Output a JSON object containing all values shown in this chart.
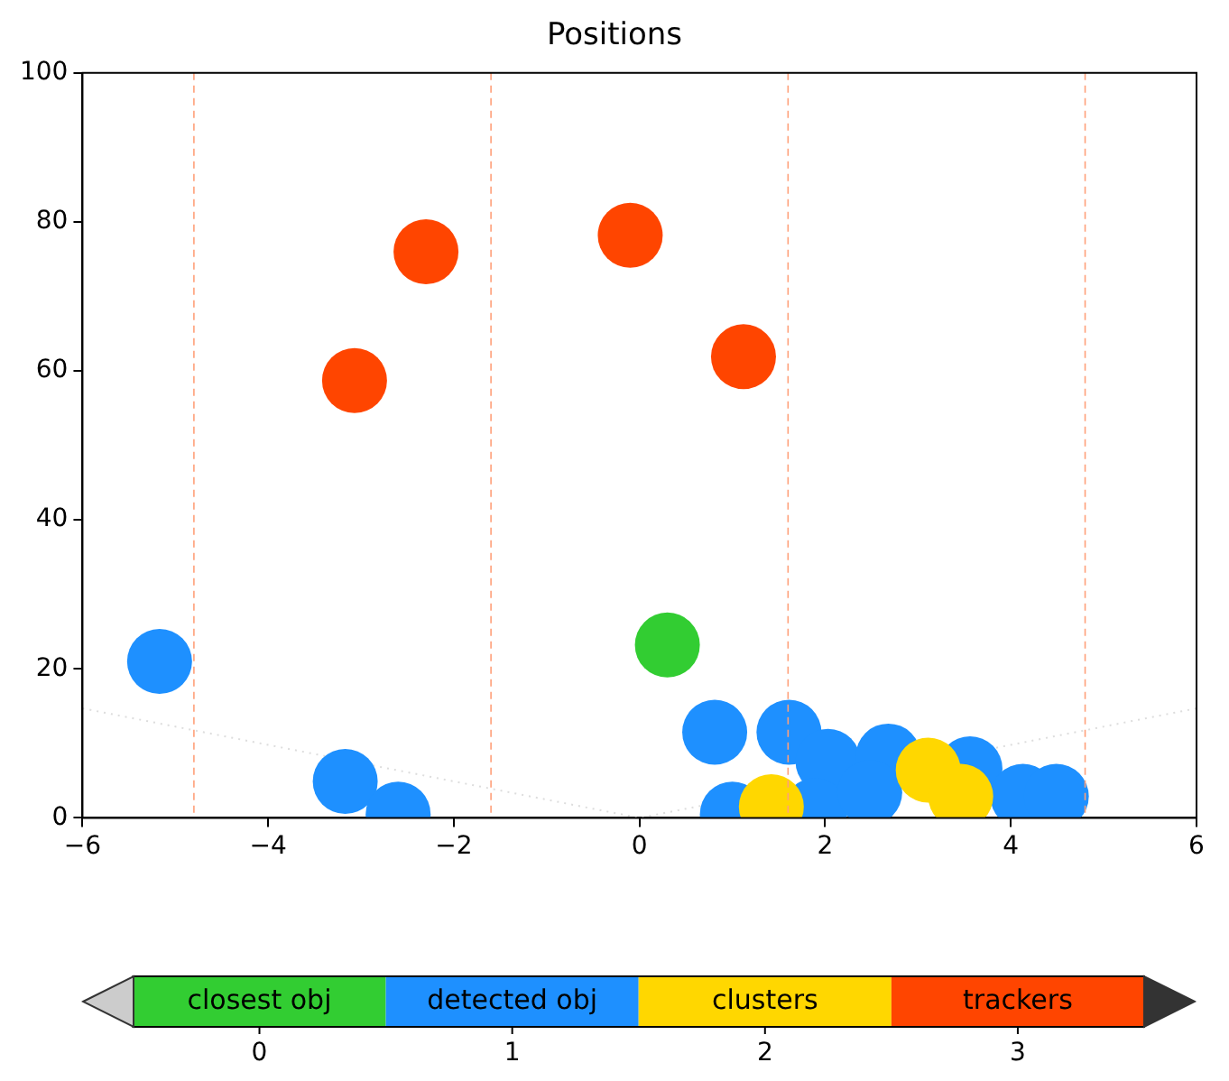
{
  "chart_data": {
    "type": "scatter",
    "title": "Positions",
    "xlim": [
      -6,
      6
    ],
    "xticks": [
      -6,
      -4,
      -2,
      0,
      2,
      4,
      6
    ],
    "ylim": [
      0,
      100
    ],
    "yticks": [
      0,
      20,
      40,
      60,
      80,
      100
    ],
    "grid": false,
    "marker": "circle",
    "legend": "bottom",
    "clim": [
      -0.5,
      3.5
    ],
    "cticks": [
      0,
      1,
      2,
      3
    ],
    "ref_lines": [
      {
        "axis": "x",
        "value": -4.8,
        "color": "#ffa07a",
        "line_style": "dashed"
      },
      {
        "axis": "x",
        "value": -1.6,
        "color": "#ffa07a",
        "line_style": "dashed"
      },
      {
        "axis": "x",
        "value": 1.6,
        "color": "#ffa07a",
        "line_style": "dashed"
      },
      {
        "axis": "x",
        "value": 4.8,
        "color": "#ffa07a",
        "line_style": "dashed"
      }
    ],
    "series": [
      {
        "type": "line",
        "color": "#dddddd",
        "line_style": "dotted",
        "marker": "none",
        "x": [
          -6,
          0,
          6
        ],
        "values": [
          14.7,
          0,
          14.7
        ]
      },
      {
        "name": "closest obj",
        "color": "#32cd32",
        "x": [
          0.3
        ],
        "values": [
          23.2
        ]
      },
      {
        "name": "detected obj",
        "color": "#1e90ff",
        "x": [
          -5.17,
          -3.17,
          -2.6,
          0.81,
          1.61,
          1.0,
          2.03,
          2.68,
          3.56,
          4.13,
          4.49,
          1.89,
          2.48
        ],
        "values": [
          21.0,
          4.9,
          0.5,
          11.5,
          11.5,
          0.5,
          7.6,
          8.3,
          6.6,
          2.9,
          2.9,
          1.0,
          3.4
        ]
      },
      {
        "name": "clusters",
        "color": "#ffd700",
        "x": [
          1.42,
          3.11,
          3.46
        ],
        "values": [
          1.5,
          6.4,
          2.9
        ]
      },
      {
        "name": "trackers",
        "color": "#ff4500",
        "x": [
          -2.3,
          -3.07,
          -0.1,
          1.12
        ],
        "values": [
          76.0,
          58.7,
          78.2,
          61.9
        ]
      }
    ]
  }
}
